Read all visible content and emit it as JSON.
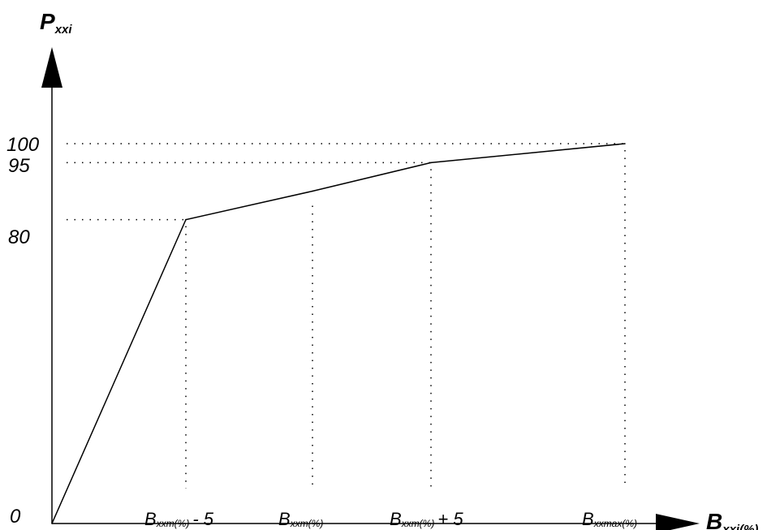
{
  "chart_data": {
    "type": "line",
    "y_axis": {
      "symbol": "P",
      "subscript": "xxi"
    },
    "x_axis": {
      "symbol": "B",
      "subscript": "xxi(%)"
    },
    "y_ticks": [
      "0",
      "80",
      "95",
      "100"
    ],
    "x_ticks": [
      {
        "symbol": "B",
        "subscript": "xxm(%)",
        "suffix": "- 5"
      },
      {
        "symbol": "B",
        "subscript": "xxm(%)",
        "suffix": ""
      },
      {
        "symbol": "B",
        "subscript": "xxm(%)",
        "suffix": "+ 5"
      },
      {
        "symbol": "B",
        "subscript": "xxmax(%)",
        "suffix": ""
      }
    ],
    "series": [
      {
        "x": [
          0,
          1,
          2,
          3,
          4
        ],
        "y": [
          0,
          80,
          87.5,
          95,
          100
        ]
      }
    ],
    "ylim": [
      0,
      100
    ],
    "grid": false,
    "legend": "none"
  }
}
